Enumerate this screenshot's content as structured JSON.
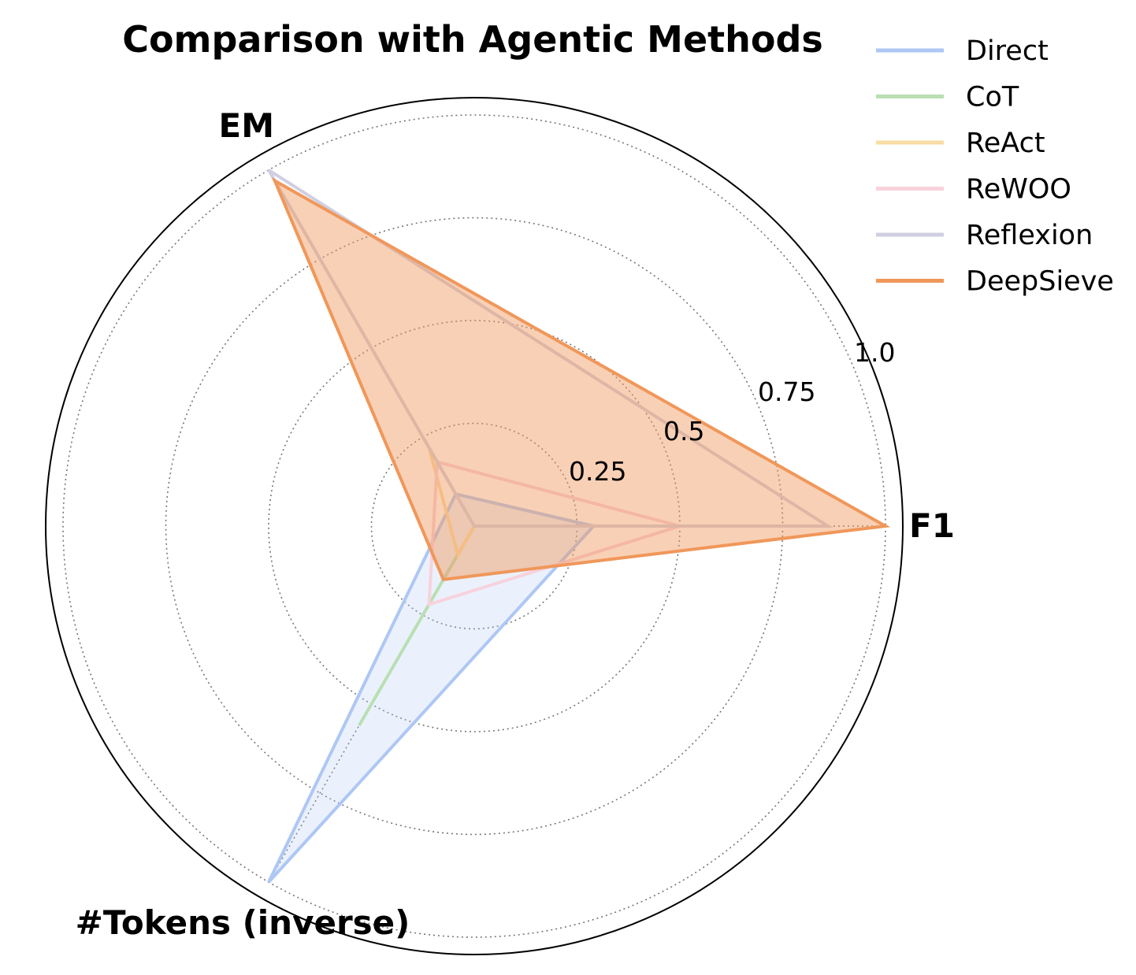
{
  "chart_data": {
    "type": "radar",
    "title": "Comparison with Agentic Methods",
    "axes": [
      "F1",
      "EM",
      "#Tokens (inverse)"
    ],
    "rlim": [
      0,
      1.0
    ],
    "r_ticks": [
      0.25,
      0.5,
      0.75,
      1.0
    ],
    "r_tick_labels": [
      "0.25",
      "0.5",
      "0.75",
      "1.0"
    ],
    "grid": true,
    "legend_position": "top-right",
    "series": [
      {
        "name": "Direct",
        "color": "#aec7f4",
        "values": [
          0.29,
          0.09,
          1.0
        ],
        "fill": true,
        "fill_opacity": 0.25
      },
      {
        "name": "CoT",
        "color": "#b9dfb3",
        "values": [
          0.0,
          0.0,
          0.56
        ],
        "fill": false
      },
      {
        "name": "ReAct",
        "color": "#f9dca3",
        "values": [
          0.0,
          0.22,
          0.08
        ],
        "fill": false
      },
      {
        "name": "ReWOO",
        "color": "#f7d2dc",
        "values": [
          0.5,
          0.18,
          0.22
        ],
        "fill": false
      },
      {
        "name": "Reflexion",
        "color": "#cfcfe2",
        "values": [
          0.86,
          1.0,
          0.0
        ],
        "fill": false
      },
      {
        "name": "DeepSieve",
        "color": "#f0975a",
        "values": [
          1.0,
          0.97,
          0.15
        ],
        "fill": true,
        "fill_opacity": 0.45
      }
    ]
  }
}
